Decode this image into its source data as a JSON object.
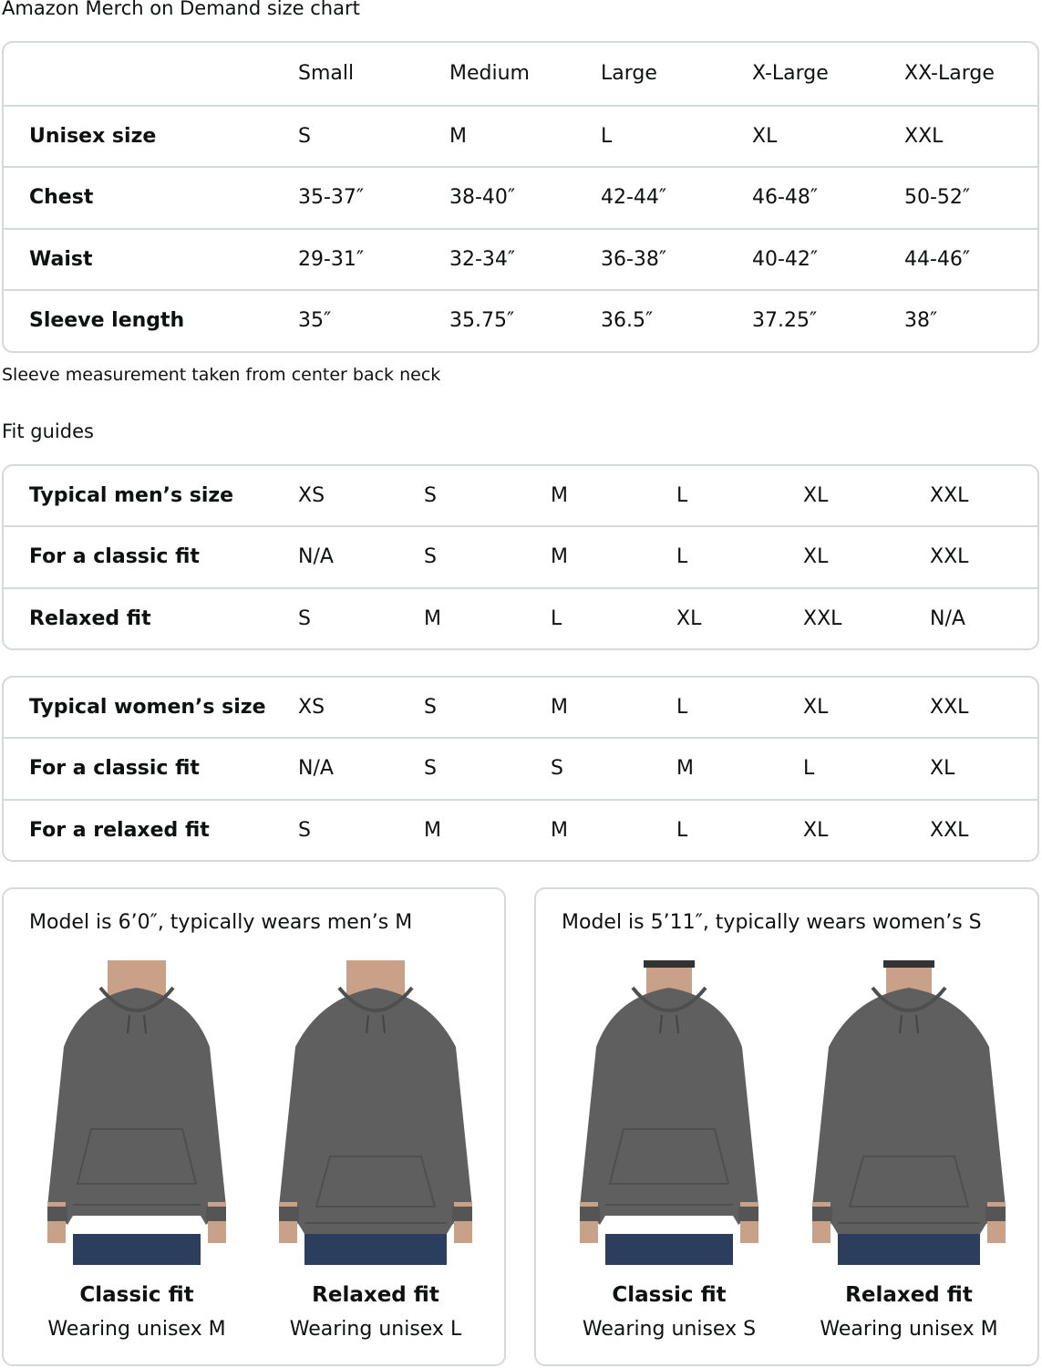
{
  "title": "Amazon Merch on Demand size chart",
  "size_table": {
    "headers": [
      "",
      "Small",
      "Medium",
      "Large",
      "X-Large",
      "XX-Large"
    ],
    "rows": [
      {
        "label": "Unisex size",
        "values": [
          "S",
          "M",
          "L",
          "XL",
          "XXL"
        ]
      },
      {
        "label": "Chest",
        "values": [
          "35-37″",
          "38-40″",
          "42-44″",
          "46-48″",
          "50-52″"
        ]
      },
      {
        "label": "Waist",
        "values": [
          "29-31″",
          "32-34″",
          "36-38″",
          "40-42″",
          "44-46″"
        ]
      },
      {
        "label": "Sleeve length",
        "values": [
          "35″",
          "35.75″",
          "36.5″",
          "37.25″",
          "38″"
        ]
      }
    ]
  },
  "sleeve_note": "Sleeve measurement taken from center back neck",
  "fit_guides_title": "Fit guides",
  "mens_table": {
    "rows": [
      {
        "label": "Typical men’s size",
        "values": [
          "XS",
          "S",
          "M",
          "L",
          "XL",
          "XXL"
        ]
      },
      {
        "label": "For a classic fit",
        "values": [
          "N/A",
          "S",
          "M",
          "L",
          "XL",
          "XXL"
        ]
      },
      {
        "label": "Relaxed fit",
        "values": [
          "S",
          "M",
          "L",
          "XL",
          "XXL",
          "N/A"
        ]
      }
    ]
  },
  "womens_table": {
    "rows": [
      {
        "label": "Typical women’s size",
        "values": [
          "XS",
          "S",
          "M",
          "L",
          "XL",
          "XXL"
        ]
      },
      {
        "label": "For a classic fit",
        "values": [
          "N/A",
          "S",
          "S",
          "M",
          "L",
          "XL"
        ]
      },
      {
        "label": "For a relaxed fit",
        "values": [
          "S",
          "M",
          "M",
          "L",
          "XL",
          "XXL"
        ]
      }
    ]
  },
  "model_cards": [
    {
      "caption": "Model is 6’0″, typically wears men’s M",
      "figures": [
        {
          "fit": "Classic fit",
          "wearing": "Wearing unisex M"
        },
        {
          "fit": "Relaxed fit",
          "wearing": "Wearing unisex L"
        }
      ]
    },
    {
      "caption": "Model is 5’11″, typically wears women’s S",
      "figures": [
        {
          "fit": "Classic fit",
          "wearing": "Wearing unisex S"
        },
        {
          "fit": "Relaxed fit",
          "wearing": "Wearing unisex M"
        }
      ]
    }
  ],
  "colors": {
    "border": "#d5d9d9",
    "hoodie": "#5f5f5f",
    "jeans": "#2c3e5e",
    "skin": "#c9a088"
  }
}
